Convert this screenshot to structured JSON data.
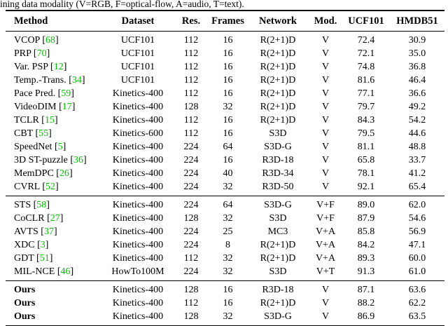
{
  "caption": {
    "text": "ining data modality (V=RGB, F=optical-flow, A=audio, T=text)."
  },
  "colors": {
    "citation_green": "#00c000",
    "text": "#000000",
    "background": "#ffffff"
  },
  "table": {
    "columns": [
      "Method",
      "Dataset",
      "Res.",
      "Frames",
      "Network",
      "Mod.",
      "UCF101",
      "HMDB51"
    ],
    "sections": [
      {
        "name": "video-only-methods",
        "rows": [
          {
            "method": "VCOP",
            "cite": "68",
            "dataset": "UCF101",
            "res": "112",
            "frames": "16",
            "network": "R(2+1)D",
            "mod": "V",
            "ucf101": "72.4",
            "hmdb51": "30.9"
          },
          {
            "method": "PRP",
            "cite": "70",
            "dataset": "UCF101",
            "res": "112",
            "frames": "16",
            "network": "R(2+1)D",
            "mod": "V",
            "ucf101": "72.1",
            "hmdb51": "35.0"
          },
          {
            "method": "Var. PSP",
            "cite": "12",
            "dataset": "UCF101",
            "res": "112",
            "frames": "16",
            "network": "R(2+1)D",
            "mod": "V",
            "ucf101": "74.8",
            "hmdb51": "36.8"
          },
          {
            "method": "Temp.-Trans.",
            "cite": "34",
            "dataset": "UCF101",
            "res": "112",
            "frames": "16",
            "network": "R(2+1)D",
            "mod": "V",
            "ucf101": "81.6",
            "hmdb51": "46.4"
          },
          {
            "method": "Pace Pred.",
            "cite": "59",
            "dataset": "Kinetics-400",
            "res": "112",
            "frames": "16",
            "network": "R(2+1)D",
            "mod": "V",
            "ucf101": "77.1",
            "hmdb51": "36.6"
          },
          {
            "method": "VideoDIM",
            "cite": "17",
            "dataset": "Kinetics-400",
            "res": "128",
            "frames": "32",
            "network": "R(2+1)D",
            "mod": "V",
            "ucf101": "79.7",
            "hmdb51": "49.2"
          },
          {
            "method": "TCLR",
            "cite": "15",
            "dataset": "Kinetics-400",
            "res": "112",
            "frames": "16",
            "network": "R(2+1)D",
            "mod": "V",
            "ucf101": "84.3",
            "hmdb51": "54.2"
          },
          {
            "method": "CBT",
            "cite": "55",
            "dataset": "Kinetics-600",
            "res": "112",
            "frames": "16",
            "network": "S3D",
            "mod": "V",
            "ucf101": "79.5",
            "hmdb51": "44.6"
          },
          {
            "method": "SpeedNet",
            "cite": "5",
            "dataset": "Kinetics-400",
            "res": "224",
            "frames": "64",
            "network": "S3D-G",
            "mod": "V",
            "ucf101": "81.1",
            "hmdb51": "48.8"
          },
          {
            "method": "3D ST-puzzle",
            "cite": "36",
            "dataset": "Kinetics-400",
            "res": "224",
            "frames": "16",
            "network": "R3D-18",
            "mod": "V",
            "ucf101": "65.8",
            "hmdb51": "33.7"
          },
          {
            "method": "MemDPC",
            "cite": "26",
            "dataset": "Kinetics-400",
            "res": "224",
            "frames": "40",
            "network": "R3D-34",
            "mod": "V",
            "ucf101": "78.1",
            "hmdb51": "41.2"
          },
          {
            "method": "CVRL",
            "cite": "52",
            "dataset": "Kinetics-400",
            "res": "224",
            "frames": "32",
            "network": "R3D-50",
            "mod": "V",
            "ucf101": "92.1",
            "hmdb51": "65.4"
          }
        ]
      },
      {
        "name": "multi-modal-methods",
        "rows": [
          {
            "method": "STS",
            "cite": "58",
            "dataset": "Kinetics-400",
            "res": "224",
            "frames": "64",
            "network": "S3D-G",
            "mod": "V+F",
            "ucf101": "89.0",
            "hmdb51": "62.0"
          },
          {
            "method": "CoCLR",
            "cite": "27",
            "dataset": "Kinetics-400",
            "res": "128",
            "frames": "32",
            "network": "S3D",
            "mod": "V+F",
            "ucf101": "87.9",
            "hmdb51": "54.6"
          },
          {
            "method": "AVTS",
            "cite": "37",
            "dataset": "Kinetics-400",
            "res": "224",
            "frames": "25",
            "network": "MC3",
            "mod": "V+A",
            "ucf101": "85.8",
            "hmdb51": "56.9"
          },
          {
            "method": "XDC",
            "cite": "3",
            "dataset": "Kinetics-400",
            "res": "224",
            "frames": "8",
            "network": "R(2+1)D",
            "mod": "V+A",
            "ucf101": "84.2",
            "hmdb51": "47.1"
          },
          {
            "method": "GDT",
            "cite": "51",
            "dataset": "Kinetics-400",
            "res": "112",
            "frames": "32",
            "network": "R(2+1)D",
            "mod": "V+A",
            "ucf101": "89.3",
            "hmdb51": "60.0"
          },
          {
            "method": "MIL-NCE",
            "cite": "46",
            "dataset": "HowTo100M",
            "res": "224",
            "frames": "32",
            "network": "S3D",
            "mod": "V+T",
            "ucf101": "91.3",
            "hmdb51": "61.0"
          }
        ]
      },
      {
        "name": "ours-methods",
        "rows": [
          {
            "method": "Ours",
            "cite": "",
            "bold": true,
            "dataset": "Kinetics-400",
            "res": "128",
            "frames": "16",
            "network": "R3D-18",
            "mod": "V",
            "ucf101": "87.1",
            "hmdb51": "63.6"
          },
          {
            "method": "Ours",
            "cite": "",
            "bold": true,
            "dataset": "Kinetics-400",
            "res": "112",
            "frames": "16",
            "network": "R(2+1)D",
            "mod": "V",
            "ucf101": "88.2",
            "hmdb51": "62.2"
          },
          {
            "method": "Ours",
            "cite": "",
            "bold": true,
            "dataset": "Kinetics-400",
            "res": "128",
            "frames": "32",
            "network": "S3D-G",
            "mod": "V",
            "ucf101": "86.9",
            "hmdb51": "63.5"
          }
        ]
      }
    ]
  }
}
